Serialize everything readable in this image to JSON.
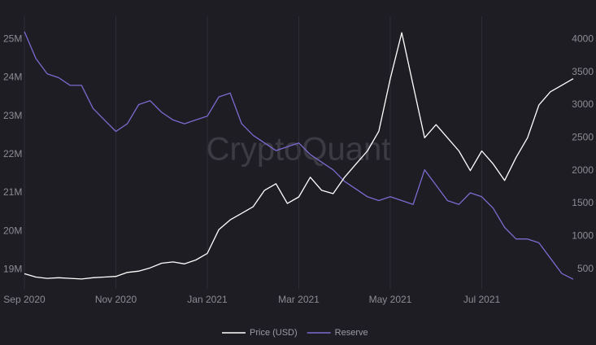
{
  "chart_data": {
    "type": "line",
    "watermark": "CryptoQuant",
    "categories": [
      "Sep 2020",
      null,
      null,
      null,
      null,
      null,
      null,
      null,
      "Nov 2020",
      null,
      null,
      null,
      null,
      null,
      null,
      null,
      "Jan 2021",
      null,
      null,
      null,
      null,
      null,
      null,
      null,
      "Mar 2021",
      null,
      null,
      null,
      null,
      null,
      null,
      null,
      "May 2021",
      null,
      null,
      null,
      null,
      null,
      null,
      null,
      "Jul 2021",
      null,
      null,
      null,
      null,
      null,
      null,
      null,
      null
    ],
    "series": [
      {
        "name": "Price (USD)",
        "color": "#ffffff",
        "axis": "y2",
        "values": [
          430,
          380,
          360,
          370,
          360,
          350,
          370,
          380,
          390,
          450,
          470,
          520,
          590,
          610,
          580,
          640,
          740,
          1100,
          1250,
          1350,
          1450,
          1700,
          1800,
          1500,
          1600,
          1900,
          1700,
          1650,
          1900,
          2100,
          2300,
          2600,
          3400,
          4100,
          3300,
          2500,
          2700,
          2500,
          2300,
          2000,
          2300,
          2100,
          1850,
          2200,
          2500,
          3000,
          3200,
          3300,
          3400
        ]
      },
      {
        "name": "Reserve",
        "color": "#7b6bd0",
        "values": [
          25.2,
          24.5,
          24.1,
          24.0,
          23.8,
          23.8,
          23.2,
          22.9,
          22.6,
          22.8,
          23.3,
          23.4,
          23.1,
          22.9,
          22.8,
          22.9,
          23.0,
          23.5,
          23.6,
          22.8,
          22.5,
          22.3,
          22.1,
          22.2,
          22.3,
          22.0,
          21.8,
          21.6,
          21.3,
          21.1,
          20.9,
          20.8,
          20.9,
          20.8,
          20.7,
          21.6,
          21.2,
          20.8,
          20.7,
          21.0,
          20.9,
          20.6,
          20.1,
          19.8,
          19.8,
          19.7,
          19.3,
          18.9,
          18.75
        ]
      }
    ],
    "ylim": [
      18.5,
      25.6
    ],
    "yticks": [
      {
        "value": 19,
        "label": "19M"
      },
      {
        "value": 20,
        "label": "20M"
      },
      {
        "value": 21,
        "label": "21M"
      },
      {
        "value": 22,
        "label": "22M"
      },
      {
        "value": 23,
        "label": "23M"
      },
      {
        "value": 24,
        "label": "24M"
      },
      {
        "value": 25,
        "label": "25M"
      }
    ],
    "y2lim": [
      200,
      4350
    ],
    "y2ticks": [
      500,
      1000,
      1500,
      2000,
      2500,
      3000,
      3500,
      4000
    ],
    "grid": true,
    "legend": "bottom"
  }
}
